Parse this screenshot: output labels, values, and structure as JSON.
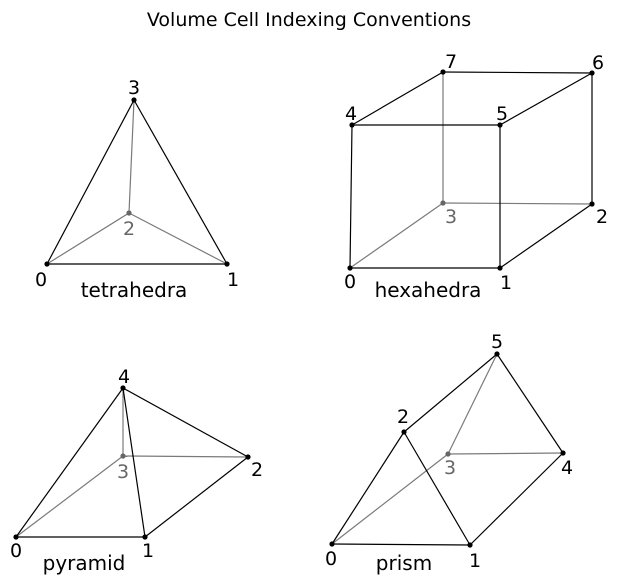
{
  "title": "Volume Cell Indexing Conventions",
  "colors": {
    "front_edge": "#000000",
    "hidden_edge": "#7a7a7a",
    "front_vertex": "#000000",
    "hidden_vertex": "#666666",
    "background": "#ffffff"
  },
  "cells": {
    "tetrahedra": {
      "label": "tetrahedra",
      "vertices": [
        "0",
        "1",
        "2",
        "3"
      ],
      "hidden_vertices": [
        "2"
      ]
    },
    "hexahedra": {
      "label": "hexahedra",
      "vertices": [
        "0",
        "1",
        "2",
        "3",
        "4",
        "5",
        "6",
        "7"
      ],
      "hidden_vertices": [
        "3"
      ]
    },
    "pyramid": {
      "label": "pyramid",
      "vertices": [
        "0",
        "1",
        "2",
        "3",
        "4"
      ],
      "hidden_vertices": [
        "3"
      ]
    },
    "prism": {
      "label": "prism",
      "vertices": [
        "0",
        "1",
        "2",
        "3",
        "4",
        "5"
      ],
      "hidden_vertices": [
        "3"
      ]
    }
  }
}
